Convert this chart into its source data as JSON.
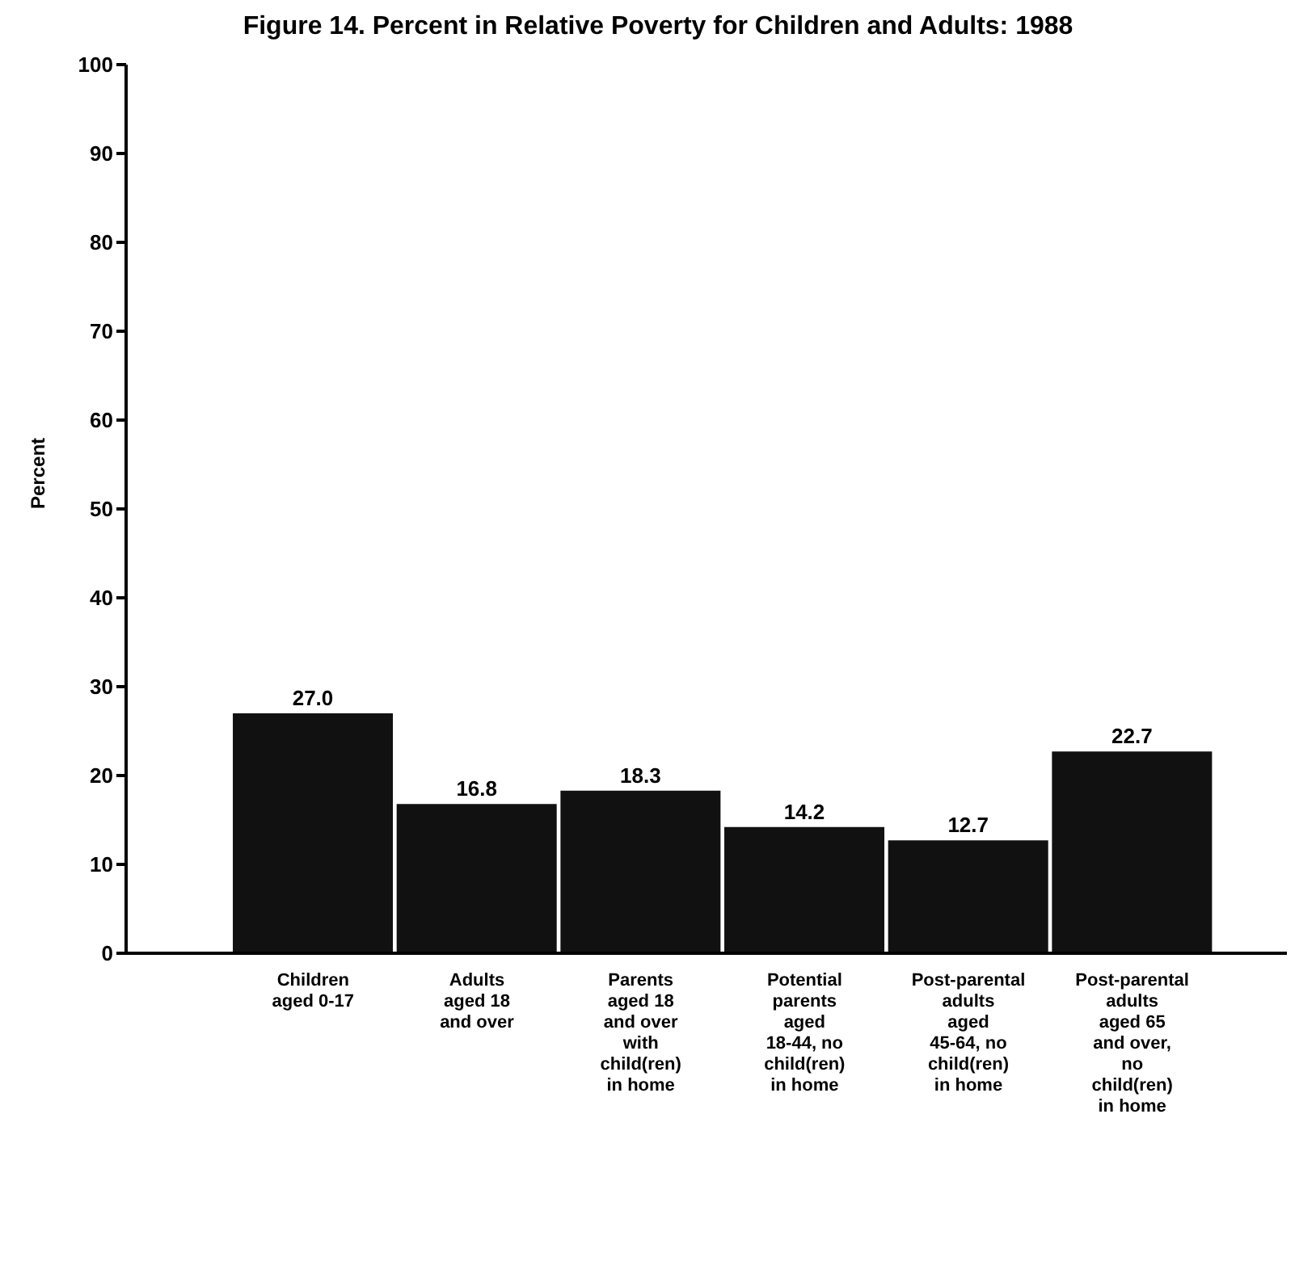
{
  "chart_data": {
    "type": "bar",
    "title": "Figure 14.  Percent in Relative Poverty for Children and Adults:  1988",
    "ylabel": "Percent",
    "categories": [
      "Children aged 0-17",
      "Adults aged 18 and over",
      "Parents aged 18 and over with child(ren) in home",
      "Potential parents aged 18-44, no child(ren) in home",
      "Post-parental adults aged 45-64, no child(ren) in home",
      "Post-parental adults aged 65 and over, no child(ren) in home"
    ],
    "values": [
      27.0,
      16.8,
      18.3,
      14.2,
      12.7,
      22.7
    ],
    "color": "#111111",
    "value_labels": [
      "27.0",
      "16.8",
      "18.3",
      "14.2",
      "12.7",
      "22.7"
    ],
    "ylim": [
      0,
      100
    ],
    "yticks": [
      0,
      10,
      20,
      30,
      40,
      50,
      60,
      70,
      80,
      90,
      100
    ],
    "grid": false
  }
}
